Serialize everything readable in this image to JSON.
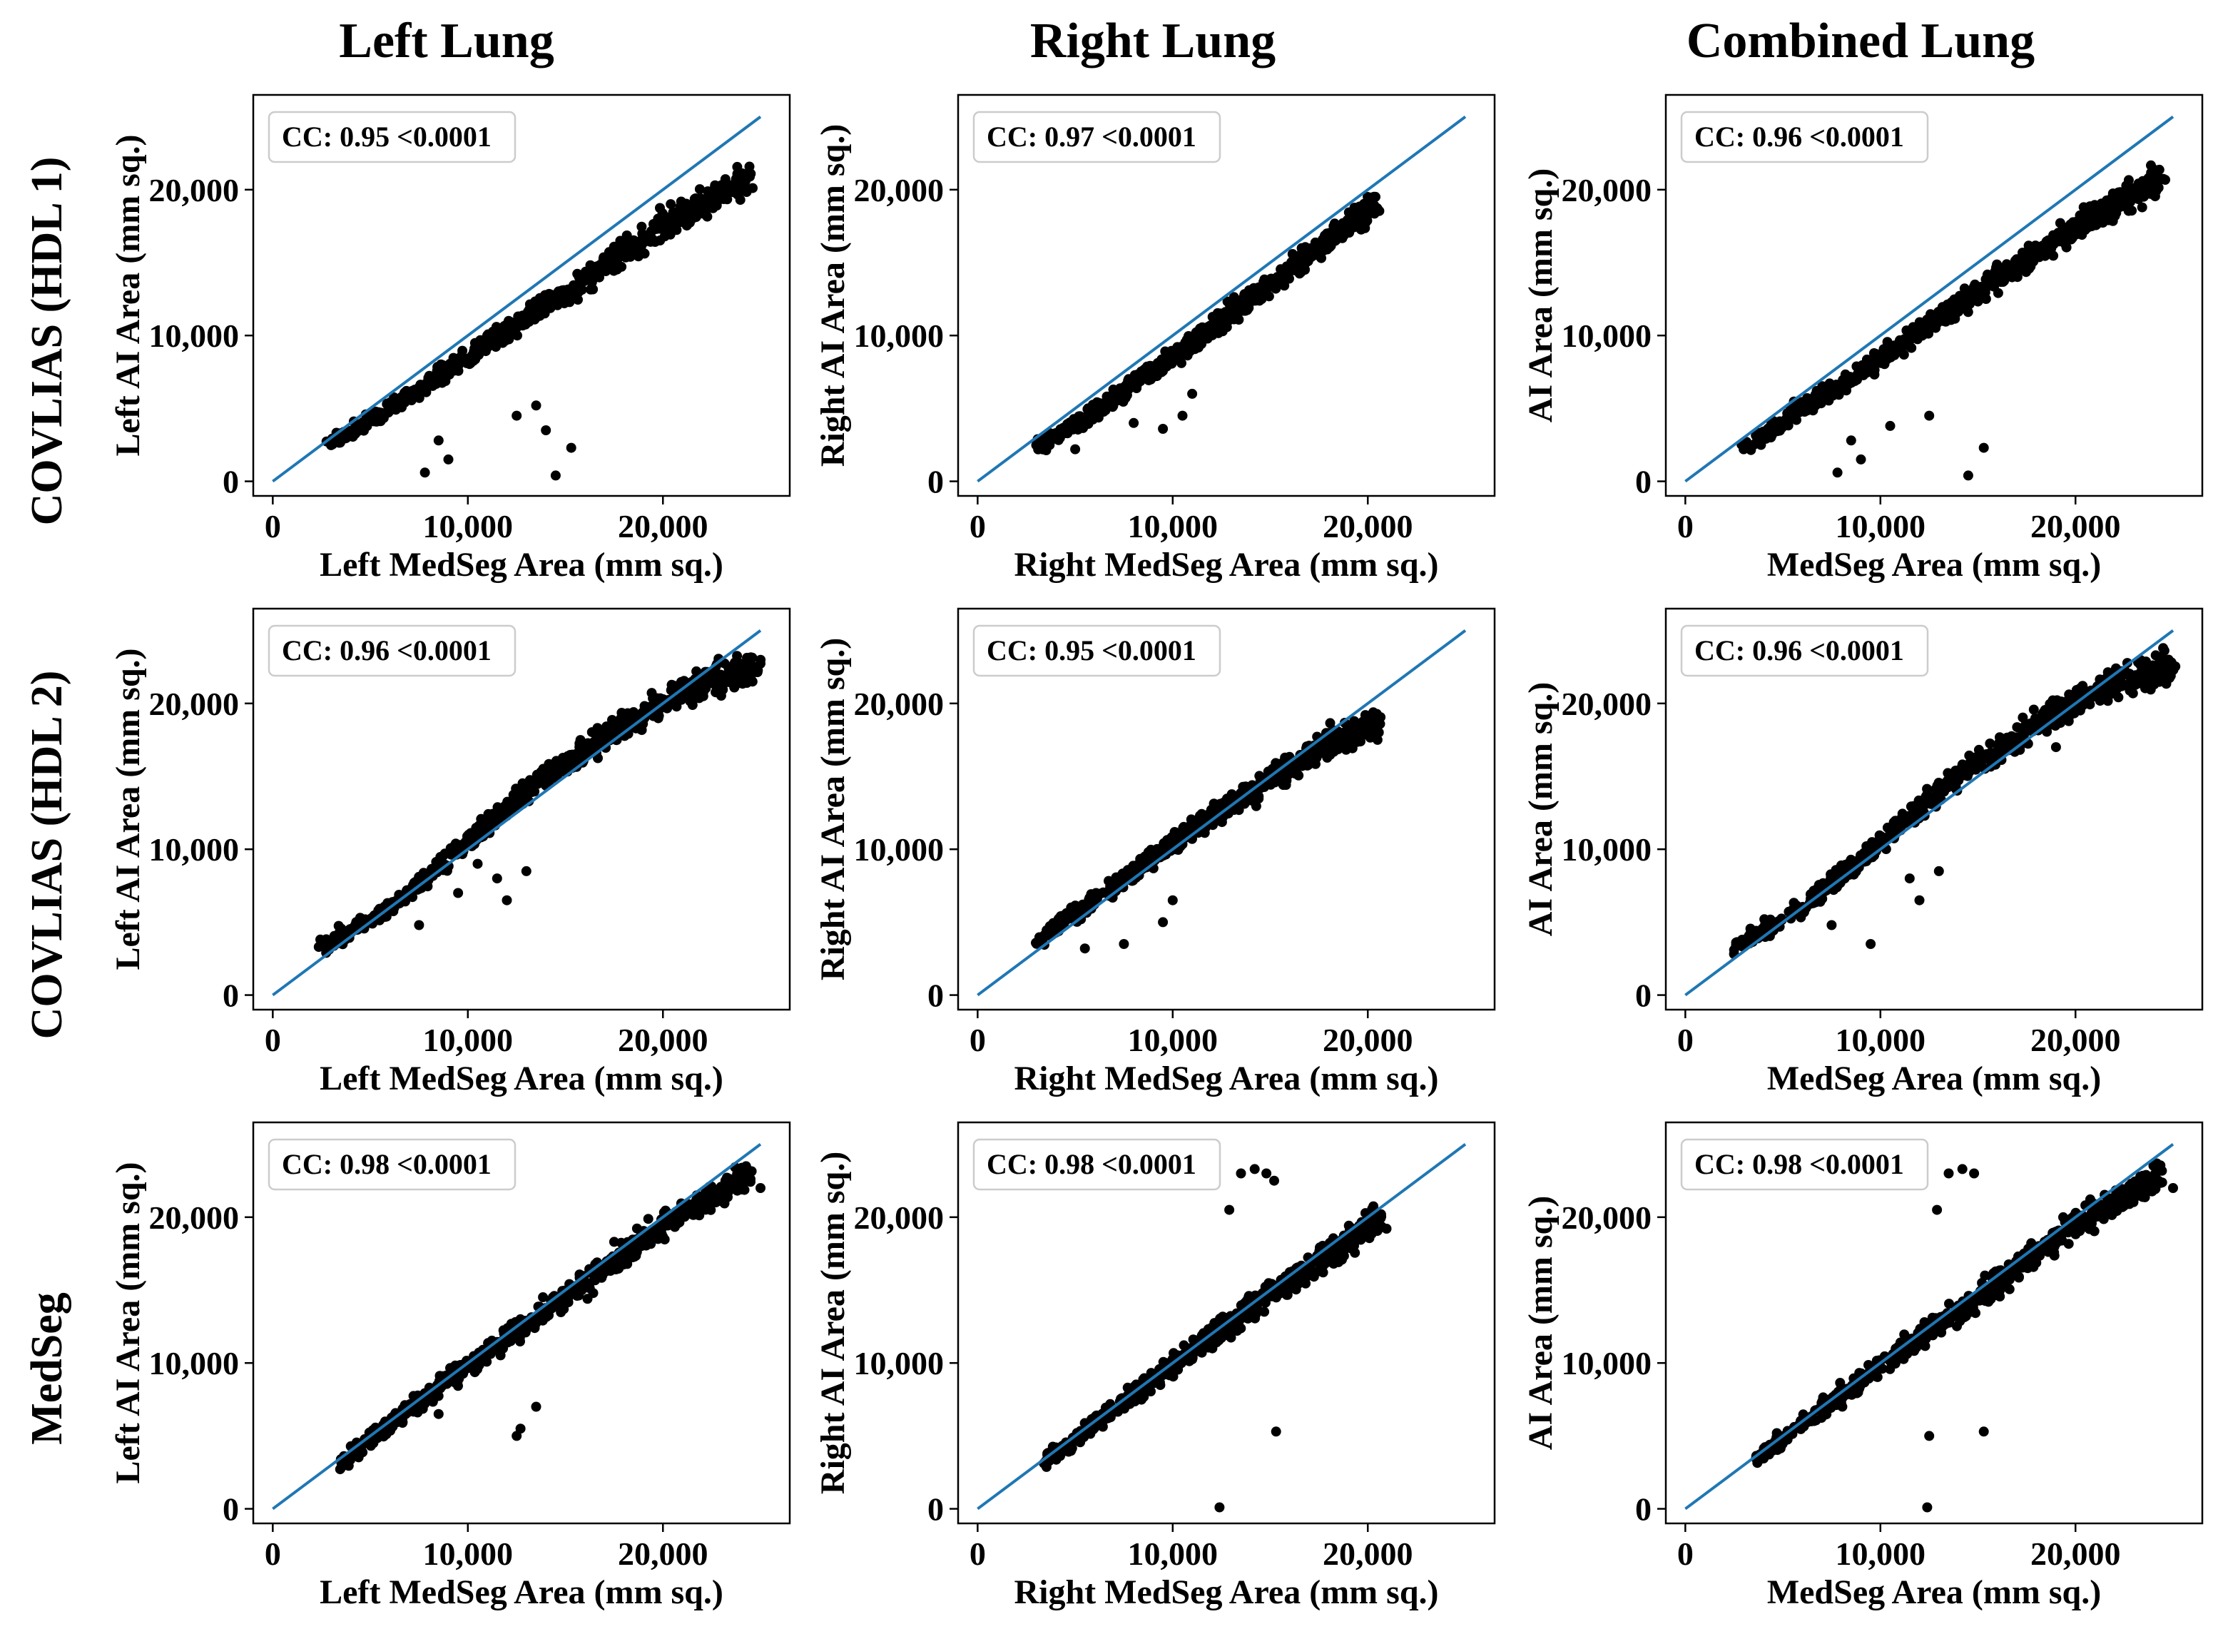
{
  "column_titles": [
    "Left Lung",
    "Right Lung",
    "Combined Lung"
  ],
  "row_titles": [
    "COVLIAS (HDL 1)",
    "COVLIAS (HDL 2)",
    "MedSeg"
  ],
  "colors": {
    "points": "#000000",
    "identity_line": "#1f77b4",
    "frame": "#000000",
    "legend_border": "#cccccc"
  },
  "chart_data": [
    {
      "id": "r1c1",
      "type": "scatter",
      "title": "",
      "xlabel": "Left MedSeg Area (mm sq.)",
      "ylabel": "Left AI Area (mm sq.)",
      "annotation": "CC: 0.95 <0.0001",
      "xlim": [
        -1000,
        26500
      ],
      "ylim": [
        -1000,
        26500
      ],
      "xticks": [
        0,
        10000,
        20000
      ],
      "xtick_labels": [
        "0",
        "10,000",
        "20,000"
      ],
      "yticks": [
        0,
        10000,
        20000
      ],
      "ytick_labels": [
        "0",
        "10,000",
        "20,000"
      ],
      "identity_line": [
        [
          0,
          0
        ],
        [
          25000,
          25000
        ]
      ],
      "series": [
        {
          "name": "points",
          "trend": [
            [
              3000,
              2500
            ],
            [
              6000,
              5000
            ],
            [
              10000,
              8500
            ],
            [
              15000,
              13000
            ],
            [
              20000,
              17500
            ],
            [
              24500,
              20800
            ]
          ],
          "outliers": [
            [
              7800,
              600
            ],
            [
              9000,
              1500
            ],
            [
              14500,
              400
            ],
            [
              15300,
              2300
            ],
            [
              14000,
              3500
            ],
            [
              12500,
              4500
            ],
            [
              13500,
              5200
            ],
            [
              8500,
              2800
            ]
          ]
        }
      ]
    },
    {
      "id": "r1c2",
      "type": "scatter",
      "title": "",
      "xlabel": "Right MedSeg Area (mm sq.)",
      "ylabel": "Right AI Area (mm sq.)",
      "annotation": "CC: 0.97 <0.0001",
      "xlim": [
        -1000,
        26500
      ],
      "ylim": [
        -1000,
        26500
      ],
      "xticks": [
        0,
        10000,
        20000
      ],
      "xtick_labels": [
        "0",
        "10,000",
        "20,000"
      ],
      "yticks": [
        0,
        10000,
        20000
      ],
      "ytick_labels": [
        "0",
        "10,000",
        "20,000"
      ],
      "identity_line": [
        [
          0,
          0
        ],
        [
          25000,
          25000
        ]
      ],
      "series": [
        {
          "name": "points",
          "trend": [
            [
              3000,
              2300
            ],
            [
              6000,
              4800
            ],
            [
              10000,
              8500
            ],
            [
              14000,
              12500
            ],
            [
              18000,
              16500
            ],
            [
              20500,
              19300
            ]
          ],
          "outliers": [
            [
              5000,
              2200
            ],
            [
              8000,
              4000
            ],
            [
              9500,
              3600
            ],
            [
              10500,
              4500
            ],
            [
              11000,
              6000
            ]
          ]
        }
      ]
    },
    {
      "id": "r1c3",
      "type": "scatter",
      "title": "",
      "xlabel": "MedSeg Area (mm sq.)",
      "ylabel": "AI Area (mm sq.)",
      "annotation": "CC: 0.96 <0.0001",
      "xlim": [
        -1000,
        26500
      ],
      "ylim": [
        -1000,
        26500
      ],
      "xticks": [
        0,
        10000,
        20000
      ],
      "xtick_labels": [
        "0",
        "10,000",
        "20,000"
      ],
      "yticks": [
        0,
        10000,
        20000
      ],
      "ytick_labels": [
        "0",
        "10,000",
        "20,000"
      ],
      "identity_line": [
        [
          0,
          0
        ],
        [
          25000,
          25000
        ]
      ],
      "series": [
        {
          "name": "points",
          "trend": [
            [
              3000,
              2400
            ],
            [
              6000,
              5000
            ],
            [
              10000,
              8500
            ],
            [
              15000,
              13000
            ],
            [
              20000,
              17500
            ],
            [
              24500,
              20800
            ]
          ],
          "outliers": [
            [
              7800,
              600
            ],
            [
              9000,
              1500
            ],
            [
              14500,
              400
            ],
            [
              15300,
              2300
            ],
            [
              12500,
              4500
            ],
            [
              8500,
              2800
            ],
            [
              10500,
              3800
            ]
          ]
        }
      ]
    },
    {
      "id": "r2c1",
      "type": "scatter",
      "title": "",
      "xlabel": "Left MedSeg Area (mm sq.)",
      "ylabel": "Left AI Area (mm sq.)",
      "annotation": "CC: 0.96 <0.0001",
      "xlim": [
        -1000,
        26500
      ],
      "ylim": [
        -1000,
        26500
      ],
      "xticks": [
        0,
        10000,
        20000
      ],
      "xtick_labels": [
        "0",
        "10,000",
        "20,000"
      ],
      "yticks": [
        0,
        10000,
        20000
      ],
      "ytick_labels": [
        "0",
        "10,000",
        "20,000"
      ],
      "identity_line": [
        [
          0,
          0
        ],
        [
          25000,
          25000
        ]
      ],
      "series": [
        {
          "name": "points",
          "trend": [
            [
              2500,
              3300
            ],
            [
              6000,
              6000
            ],
            [
              10000,
              10500
            ],
            [
              14000,
              15000
            ],
            [
              18000,
              18500
            ],
            [
              22000,
              21500
            ],
            [
              25000,
              22500
            ]
          ],
          "outliers": [
            [
              7500,
              4800
            ],
            [
              9500,
              7000
            ],
            [
              11500,
              8000
            ],
            [
              13000,
              8500
            ],
            [
              12000,
              6500
            ],
            [
              10500,
              9000
            ]
          ]
        }
      ]
    },
    {
      "id": "r2c2",
      "type": "scatter",
      "title": "",
      "xlabel": "Right MedSeg Area (mm sq.)",
      "ylabel": "Right AI Area (mm sq.)",
      "annotation": "CC: 0.95 <0.0001",
      "xlim": [
        -1000,
        26500
      ],
      "ylim": [
        -1000,
        26500
      ],
      "xticks": [
        0,
        10000,
        20000
      ],
      "xtick_labels": [
        "0",
        "10,000",
        "20,000"
      ],
      "yticks": [
        0,
        10000,
        20000
      ],
      "ytick_labels": [
        "0",
        "10,000",
        "20,000"
      ],
      "identity_line": [
        [
          0,
          0
        ],
        [
          25000,
          25000
        ]
      ],
      "series": [
        {
          "name": "points",
          "trend": [
            [
              3000,
              3700
            ],
            [
              6000,
              6500
            ],
            [
              10000,
              10500
            ],
            [
              14000,
              14000
            ],
            [
              17500,
              17000
            ],
            [
              20500,
              18800
            ]
          ],
          "outliers": [
            [
              7500,
              3500
            ],
            [
              9500,
              5000
            ],
            [
              10000,
              6500
            ],
            [
              5500,
              3200
            ],
            [
              19000,
              17000
            ],
            [
              20500,
              17500
            ]
          ]
        }
      ]
    },
    {
      "id": "r2c3",
      "type": "scatter",
      "title": "",
      "xlabel": "MedSeg Area (mm sq.)",
      "ylabel": "AI Area (mm sq.)",
      "annotation": "CC: 0.96 <0.0001",
      "xlim": [
        -1000,
        26500
      ],
      "ylim": [
        -1000,
        26500
      ],
      "xticks": [
        0,
        10000,
        20000
      ],
      "xtick_labels": [
        "0",
        "10,000",
        "20,000"
      ],
      "yticks": [
        0,
        10000,
        20000
      ],
      "ytick_labels": [
        "0",
        "10,000",
        "20,000"
      ],
      "identity_line": [
        [
          0,
          0
        ],
        [
          25000,
          25000
        ]
      ],
      "series": [
        {
          "name": "points",
          "trend": [
            [
              2500,
              3300
            ],
            [
              6000,
              6000
            ],
            [
              10000,
              10500
            ],
            [
              14000,
              15000
            ],
            [
              18000,
              18500
            ],
            [
              22000,
              21500
            ],
            [
              25000,
              22500
            ]
          ],
          "outliers": [
            [
              7500,
              4800
            ],
            [
              9500,
              3500
            ],
            [
              11500,
              8000
            ],
            [
              13000,
              8500
            ],
            [
              12000,
              6500
            ],
            [
              19000,
              17000
            ]
          ]
        }
      ]
    },
    {
      "id": "r3c1",
      "type": "scatter",
      "title": "",
      "xlabel": "Left MedSeg Area (mm sq.)",
      "ylabel": "Left AI Area (mm sq.)",
      "annotation": "CC: 0.98 <0.0001",
      "xlim": [
        -1000,
        26500
      ],
      "ylim": [
        -1000,
        26500
      ],
      "xticks": [
        0,
        10000,
        20000
      ],
      "xtick_labels": [
        "0",
        "10,000",
        "20,000"
      ],
      "yticks": [
        0,
        10000,
        20000
      ],
      "ytick_labels": [
        "0",
        "10,000",
        "20,000"
      ],
      "identity_line": [
        [
          0,
          0
        ],
        [
          25000,
          25000
        ]
      ],
      "series": [
        {
          "name": "points",
          "trend": [
            [
              3500,
              3300
            ],
            [
              6000,
              5800
            ],
            [
              10000,
              9800
            ],
            [
              15000,
              14500
            ],
            [
              20000,
              19500
            ],
            [
              24500,
              23000
            ]
          ],
          "outliers": [
            [
              12500,
              5000
            ],
            [
              12700,
              5500
            ],
            [
              13500,
              7000
            ],
            [
              8500,
              6500
            ],
            [
              25000,
              22000
            ]
          ]
        }
      ]
    },
    {
      "id": "r3c2",
      "type": "scatter",
      "title": "",
      "xlabel": "Right MedSeg Area (mm sq.)",
      "ylabel": "Right AI Area (mm sq.)",
      "annotation": "CC: 0.98 <0.0001",
      "xlim": [
        -1000,
        26500
      ],
      "ylim": [
        -1000,
        26500
      ],
      "xticks": [
        0,
        10000,
        20000
      ],
      "xtick_labels": [
        "0",
        "10,000",
        "20,000"
      ],
      "yticks": [
        0,
        10000,
        20000
      ],
      "ytick_labels": [
        "0",
        "10,000",
        "20,000"
      ],
      "identity_line": [
        [
          0,
          0
        ],
        [
          25000,
          25000
        ]
      ],
      "series": [
        {
          "name": "points",
          "trend": [
            [
              3500,
              3300
            ],
            [
              6000,
              5800
            ],
            [
              10000,
              9800
            ],
            [
              14000,
              13800
            ],
            [
              18000,
              17500
            ],
            [
              20700,
              20000
            ]
          ],
          "outliers": [
            [
              12400,
              100
            ],
            [
              15300,
              5300
            ],
            [
              12900,
              20500
            ],
            [
              13500,
              23000
            ],
            [
              14200,
              23300
            ],
            [
              14800,
              23000
            ],
            [
              15200,
              22500
            ]
          ]
        }
      ]
    },
    {
      "id": "r3c3",
      "type": "scatter",
      "title": "",
      "xlabel": "MedSeg Area (mm sq.)",
      "ylabel": "AI Area (mm sq.)",
      "annotation": "CC: 0.98 <0.0001",
      "xlim": [
        -1000,
        26500
      ],
      "ylim": [
        -1000,
        26500
      ],
      "xticks": [
        0,
        10000,
        20000
      ],
      "xtick_labels": [
        "0",
        "10,000",
        "20,000"
      ],
      "yticks": [
        0,
        10000,
        20000
      ],
      "ytick_labels": [
        "0",
        "10,000",
        "20,000"
      ],
      "identity_line": [
        [
          0,
          0
        ],
        [
          25000,
          25000
        ]
      ],
      "series": [
        {
          "name": "points",
          "trend": [
            [
              3500,
              3300
            ],
            [
              6000,
              5800
            ],
            [
              10000,
              9800
            ],
            [
              15000,
              14500
            ],
            [
              20000,
              19500
            ],
            [
              24500,
              23000
            ]
          ],
          "outliers": [
            [
              12400,
              100
            ],
            [
              15300,
              5300
            ],
            [
              12500,
              5000
            ],
            [
              12900,
              20500
            ],
            [
              13500,
              23000
            ],
            [
              14200,
              23300
            ],
            [
              14800,
              23000
            ],
            [
              25000,
              22000
            ]
          ]
        }
      ]
    }
  ]
}
